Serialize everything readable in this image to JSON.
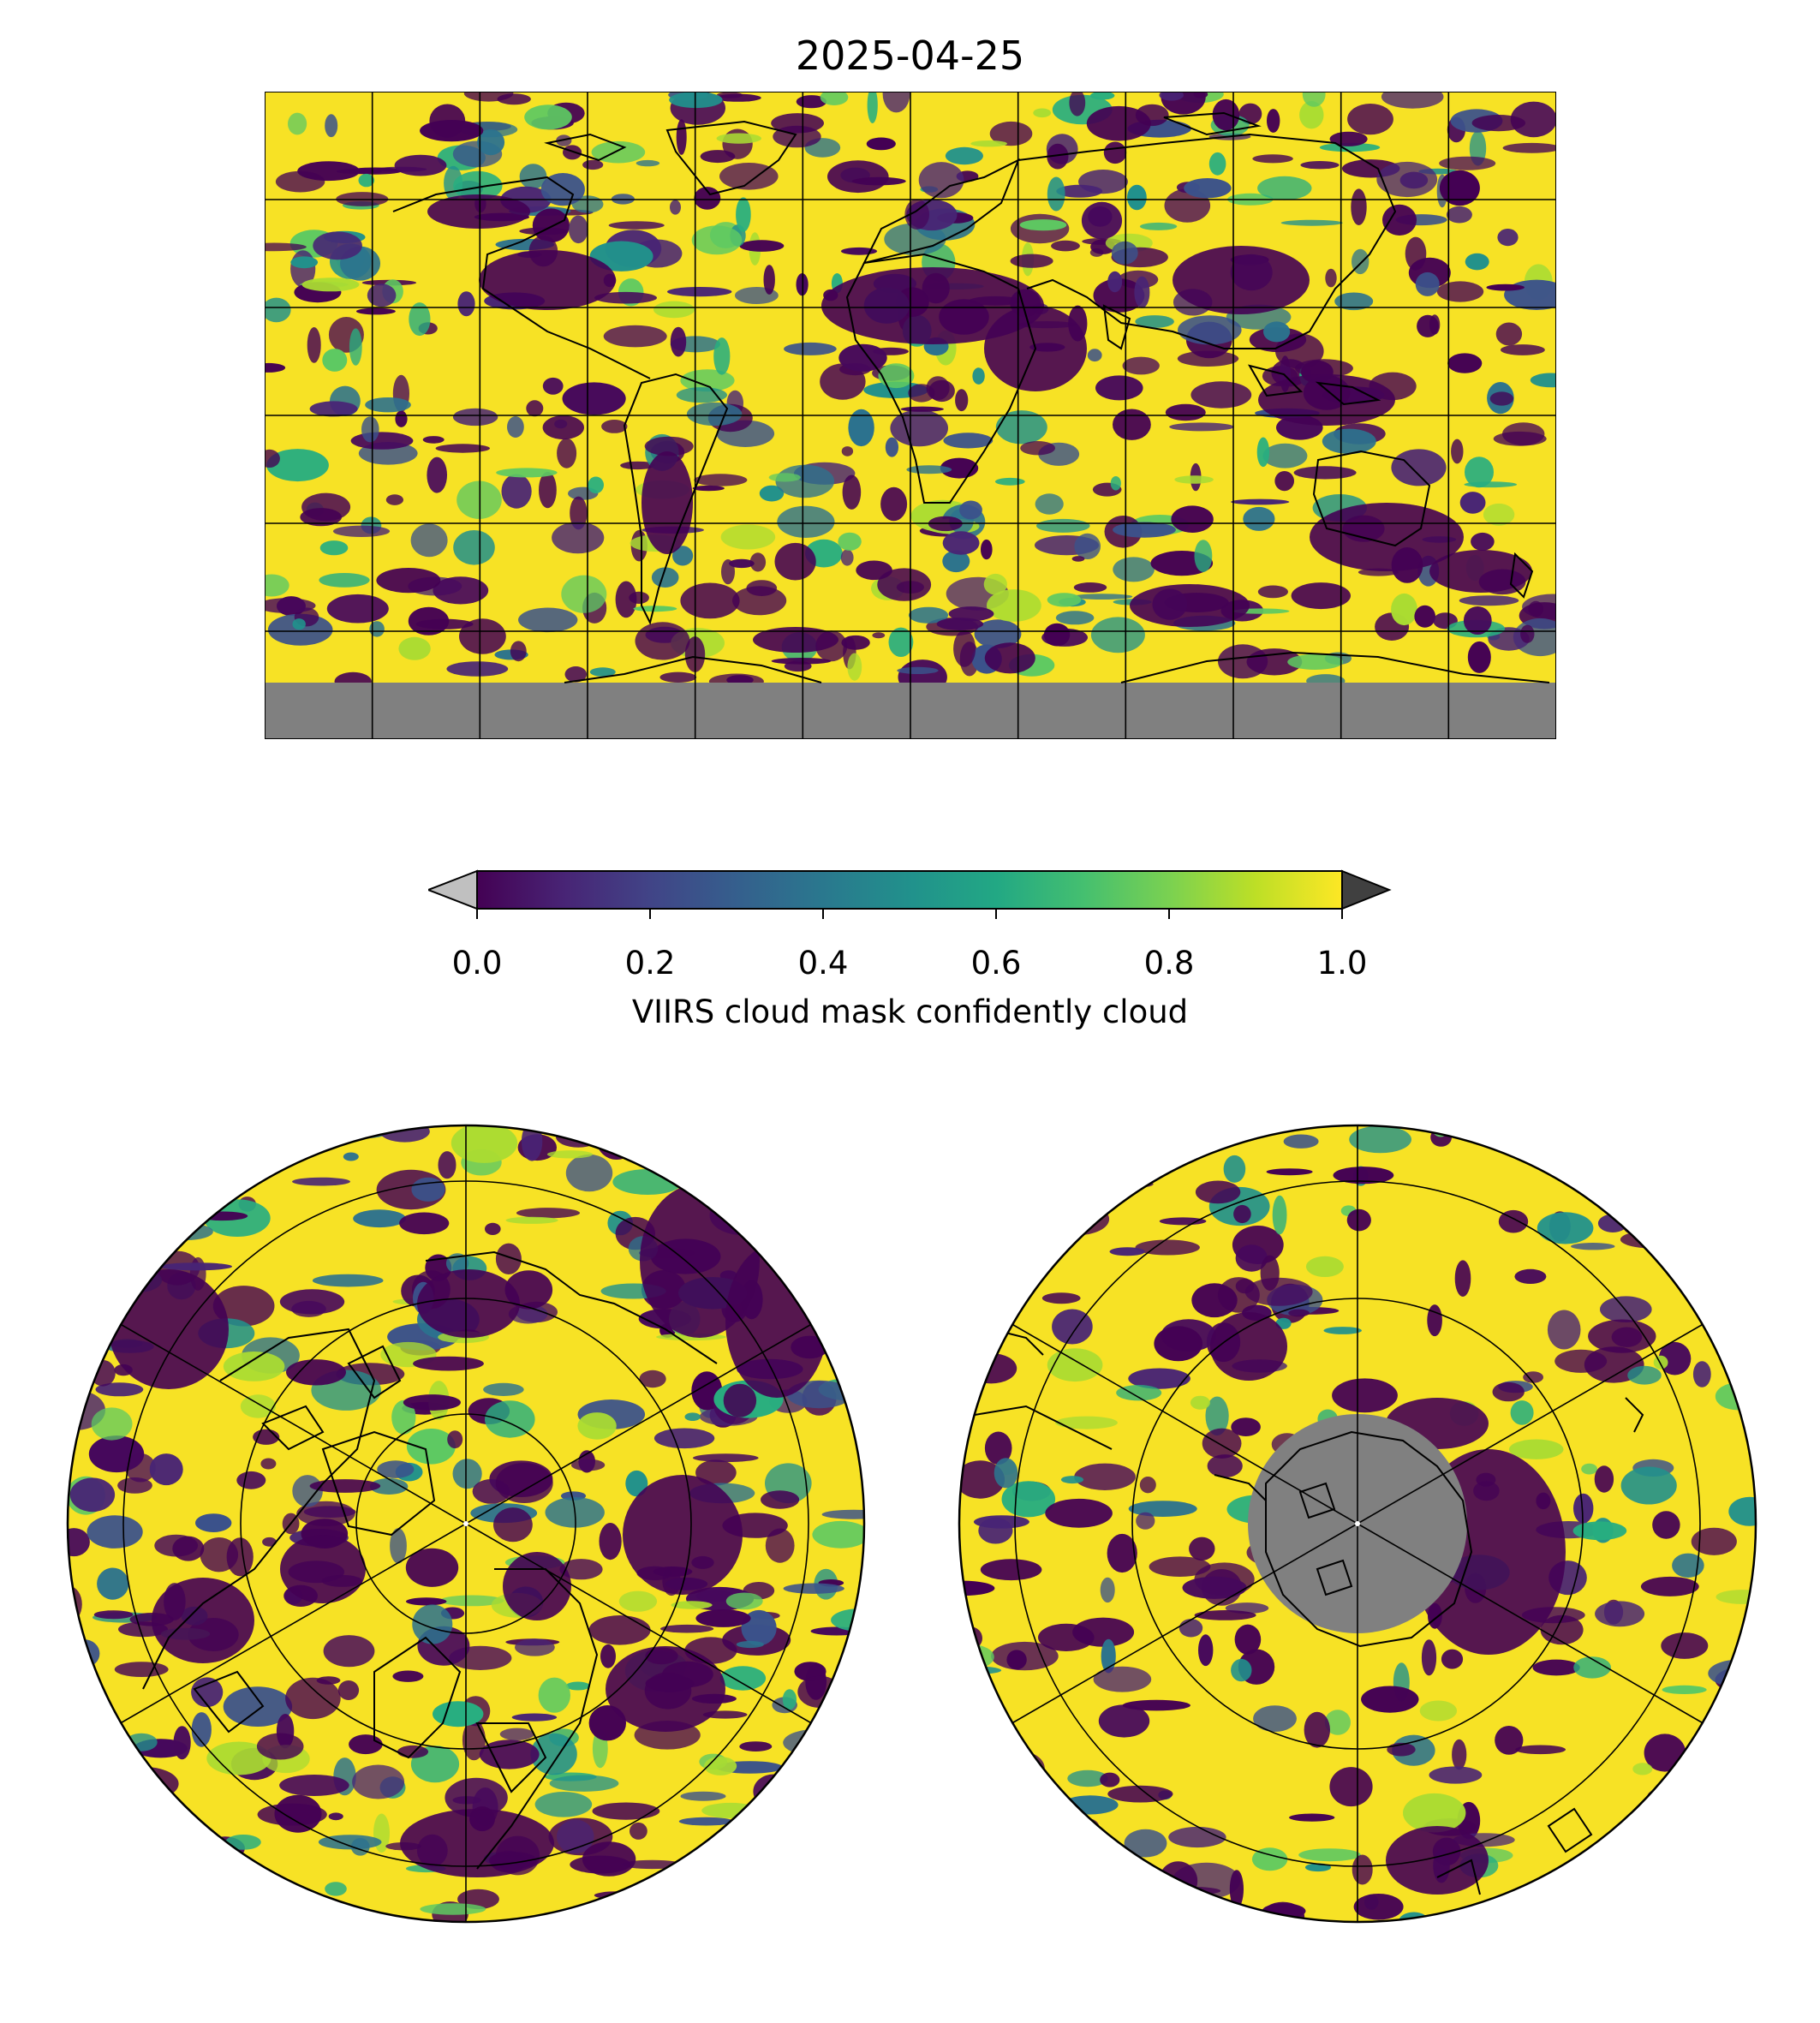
{
  "figure": {
    "title": "2025-04-25"
  },
  "colorbar": {
    "label": "VIIRS cloud mask confidently cloud",
    "ticks": [
      "0.0",
      "0.2",
      "0.4",
      "0.6",
      "0.8",
      "1.0"
    ],
    "range": [
      0,
      1
    ],
    "extend": "both",
    "colormap": "viridis",
    "under_color": "#c0c0c0",
    "over_color": "#404040",
    "missing_color": "#808080"
  },
  "maps": [
    {
      "id": "global",
      "projection": "plate-carree",
      "graticule": true
    },
    {
      "id": "north-polar",
      "projection": "north-polar-stereographic",
      "graticule": true
    },
    {
      "id": "south-polar",
      "projection": "south-polar-stereographic",
      "graticule": true
    }
  ]
}
